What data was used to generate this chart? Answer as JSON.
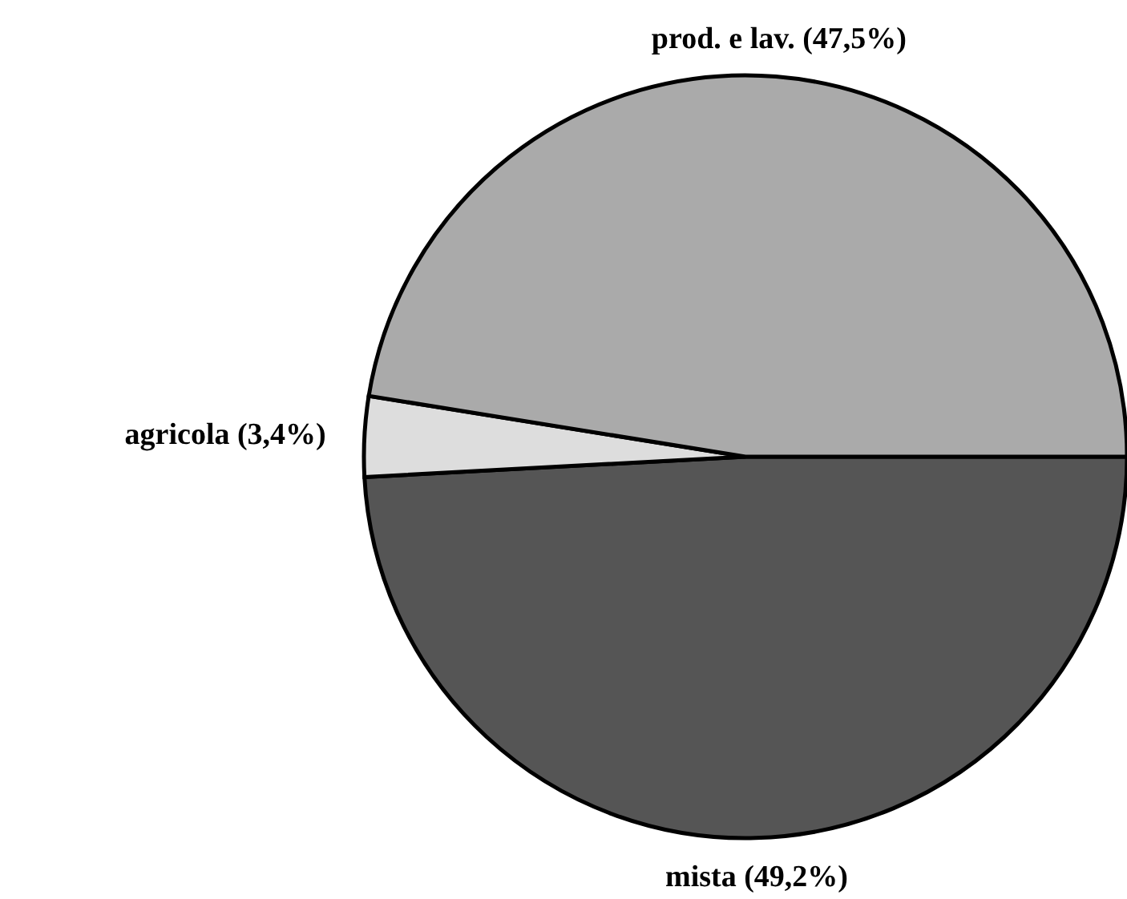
{
  "chart_data": {
    "type": "pie",
    "categories": [
      "mista",
      "agricola",
      "prod. e lav."
    ],
    "values": [
      49.2,
      3.4,
      47.5
    ],
    "value_labels": [
      "(49,2%)",
      "(3,4%)",
      "(47,5%)"
    ],
    "colors": [
      "#555555",
      "#dddddd",
      "#aaaaaa"
    ]
  }
}
